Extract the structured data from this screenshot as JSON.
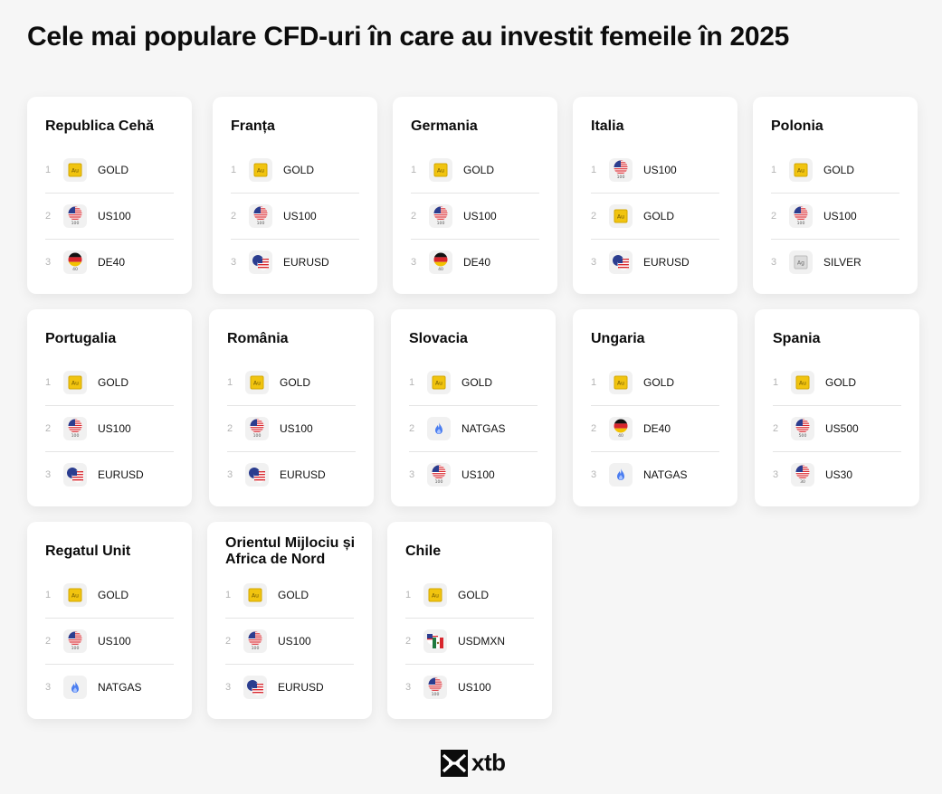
{
  "title": "Cele mai populare CFD-uri în care au investit femeile în 2025",
  "brand": "xtb",
  "cards": [
    {
      "country": "Republica Cehă",
      "items": [
        {
          "rank": "1",
          "symbol": "GOLD",
          "icon": "gold-icon",
          "icon_text": "Au"
        },
        {
          "rank": "2",
          "symbol": "US100",
          "icon": "us-flag-icon",
          "icon_text": "100"
        },
        {
          "rank": "3",
          "symbol": "DE40",
          "icon": "de-flag-icon",
          "icon_text": "40"
        }
      ]
    },
    {
      "country": "Franța",
      "items": [
        {
          "rank": "1",
          "symbol": "GOLD",
          "icon": "gold-icon",
          "icon_text": "Au"
        },
        {
          "rank": "2",
          "symbol": "US100",
          "icon": "us-flag-icon",
          "icon_text": "100"
        },
        {
          "rank": "3",
          "symbol": "EURUSD",
          "icon": "eurusd-icon",
          "icon_text": ""
        }
      ]
    },
    {
      "country": "Germania",
      "items": [
        {
          "rank": "1",
          "symbol": "GOLD",
          "icon": "gold-icon",
          "icon_text": "Au"
        },
        {
          "rank": "2",
          "symbol": "US100",
          "icon": "us-flag-icon",
          "icon_text": "100"
        },
        {
          "rank": "3",
          "symbol": "DE40",
          "icon": "de-flag-icon",
          "icon_text": "40"
        }
      ]
    },
    {
      "country": "Italia",
      "items": [
        {
          "rank": "1",
          "symbol": "US100",
          "icon": "us-flag-icon",
          "icon_text": "100"
        },
        {
          "rank": "2",
          "symbol": "GOLD",
          "icon": "gold-icon",
          "icon_text": "Au"
        },
        {
          "rank": "3",
          "symbol": "EURUSD",
          "icon": "eurusd-icon",
          "icon_text": ""
        }
      ]
    },
    {
      "country": "Polonia",
      "items": [
        {
          "rank": "1",
          "symbol": "GOLD",
          "icon": "gold-icon",
          "icon_text": "Au"
        },
        {
          "rank": "2",
          "symbol": "US100",
          "icon": "us-flag-icon",
          "icon_text": "100"
        },
        {
          "rank": "3",
          "symbol": "SILVER",
          "icon": "silver-icon",
          "icon_text": "Ag"
        }
      ]
    },
    {
      "country": "Portugalia",
      "items": [
        {
          "rank": "1",
          "symbol": "GOLD",
          "icon": "gold-icon",
          "icon_text": "Au"
        },
        {
          "rank": "2",
          "symbol": "US100",
          "icon": "us-flag-icon",
          "icon_text": "100"
        },
        {
          "rank": "3",
          "symbol": "EURUSD",
          "icon": "eurusd-icon",
          "icon_text": ""
        }
      ]
    },
    {
      "country": "România",
      "items": [
        {
          "rank": "1",
          "symbol": "GOLD",
          "icon": "gold-icon",
          "icon_text": "Au"
        },
        {
          "rank": "2",
          "symbol": "US100",
          "icon": "us-flag-icon",
          "icon_text": "100"
        },
        {
          "rank": "3",
          "symbol": "EURUSD",
          "icon": "eurusd-icon",
          "icon_text": ""
        }
      ]
    },
    {
      "country": "Slovacia",
      "items": [
        {
          "rank": "1",
          "symbol": "GOLD",
          "icon": "gold-icon",
          "icon_text": "Au"
        },
        {
          "rank": "2",
          "symbol": "NATGAS",
          "icon": "flame-icon",
          "icon_text": ""
        },
        {
          "rank": "3",
          "symbol": "US100",
          "icon": "us-flag-icon",
          "icon_text": "100"
        }
      ]
    },
    {
      "country": "Ungaria",
      "items": [
        {
          "rank": "1",
          "symbol": "GOLD",
          "icon": "gold-icon",
          "icon_text": "Au"
        },
        {
          "rank": "2",
          "symbol": "DE40",
          "icon": "de-flag-icon",
          "icon_text": "40"
        },
        {
          "rank": "3",
          "symbol": "NATGAS",
          "icon": "flame-icon",
          "icon_text": ""
        }
      ]
    },
    {
      "country": "Spania",
      "items": [
        {
          "rank": "1",
          "symbol": "GOLD",
          "icon": "gold-icon",
          "icon_text": "Au"
        },
        {
          "rank": "2",
          "symbol": "US500",
          "icon": "us-flag-icon",
          "icon_text": "500"
        },
        {
          "rank": "3",
          "symbol": "US30",
          "icon": "us-flag-icon",
          "icon_text": "30"
        }
      ]
    },
    {
      "country": "Regatul Unit",
      "items": [
        {
          "rank": "1",
          "symbol": "GOLD",
          "icon": "gold-icon",
          "icon_text": "Au"
        },
        {
          "rank": "2",
          "symbol": "US100",
          "icon": "us-flag-icon",
          "icon_text": "100"
        },
        {
          "rank": "3",
          "symbol": "NATGAS",
          "icon": "flame-icon",
          "icon_text": ""
        }
      ]
    },
    {
      "country": "Orientul Mijlociu și Africa de Nord",
      "items": [
        {
          "rank": "1",
          "symbol": "GOLD",
          "icon": "gold-icon",
          "icon_text": "Au"
        },
        {
          "rank": "2",
          "symbol": "US100",
          "icon": "us-flag-icon",
          "icon_text": "100"
        },
        {
          "rank": "3",
          "symbol": "EURUSD",
          "icon": "eurusd-icon",
          "icon_text": ""
        }
      ]
    },
    {
      "country": "Chile",
      "items": [
        {
          "rank": "1",
          "symbol": "GOLD",
          "icon": "gold-icon",
          "icon_text": "Au"
        },
        {
          "rank": "2",
          "symbol": "USDMXN",
          "icon": "usdmxn-icon",
          "icon_text": ""
        },
        {
          "rank": "3",
          "symbol": "US100",
          "icon": "us-flag-icon",
          "icon_text": "100"
        }
      ]
    }
  ]
}
